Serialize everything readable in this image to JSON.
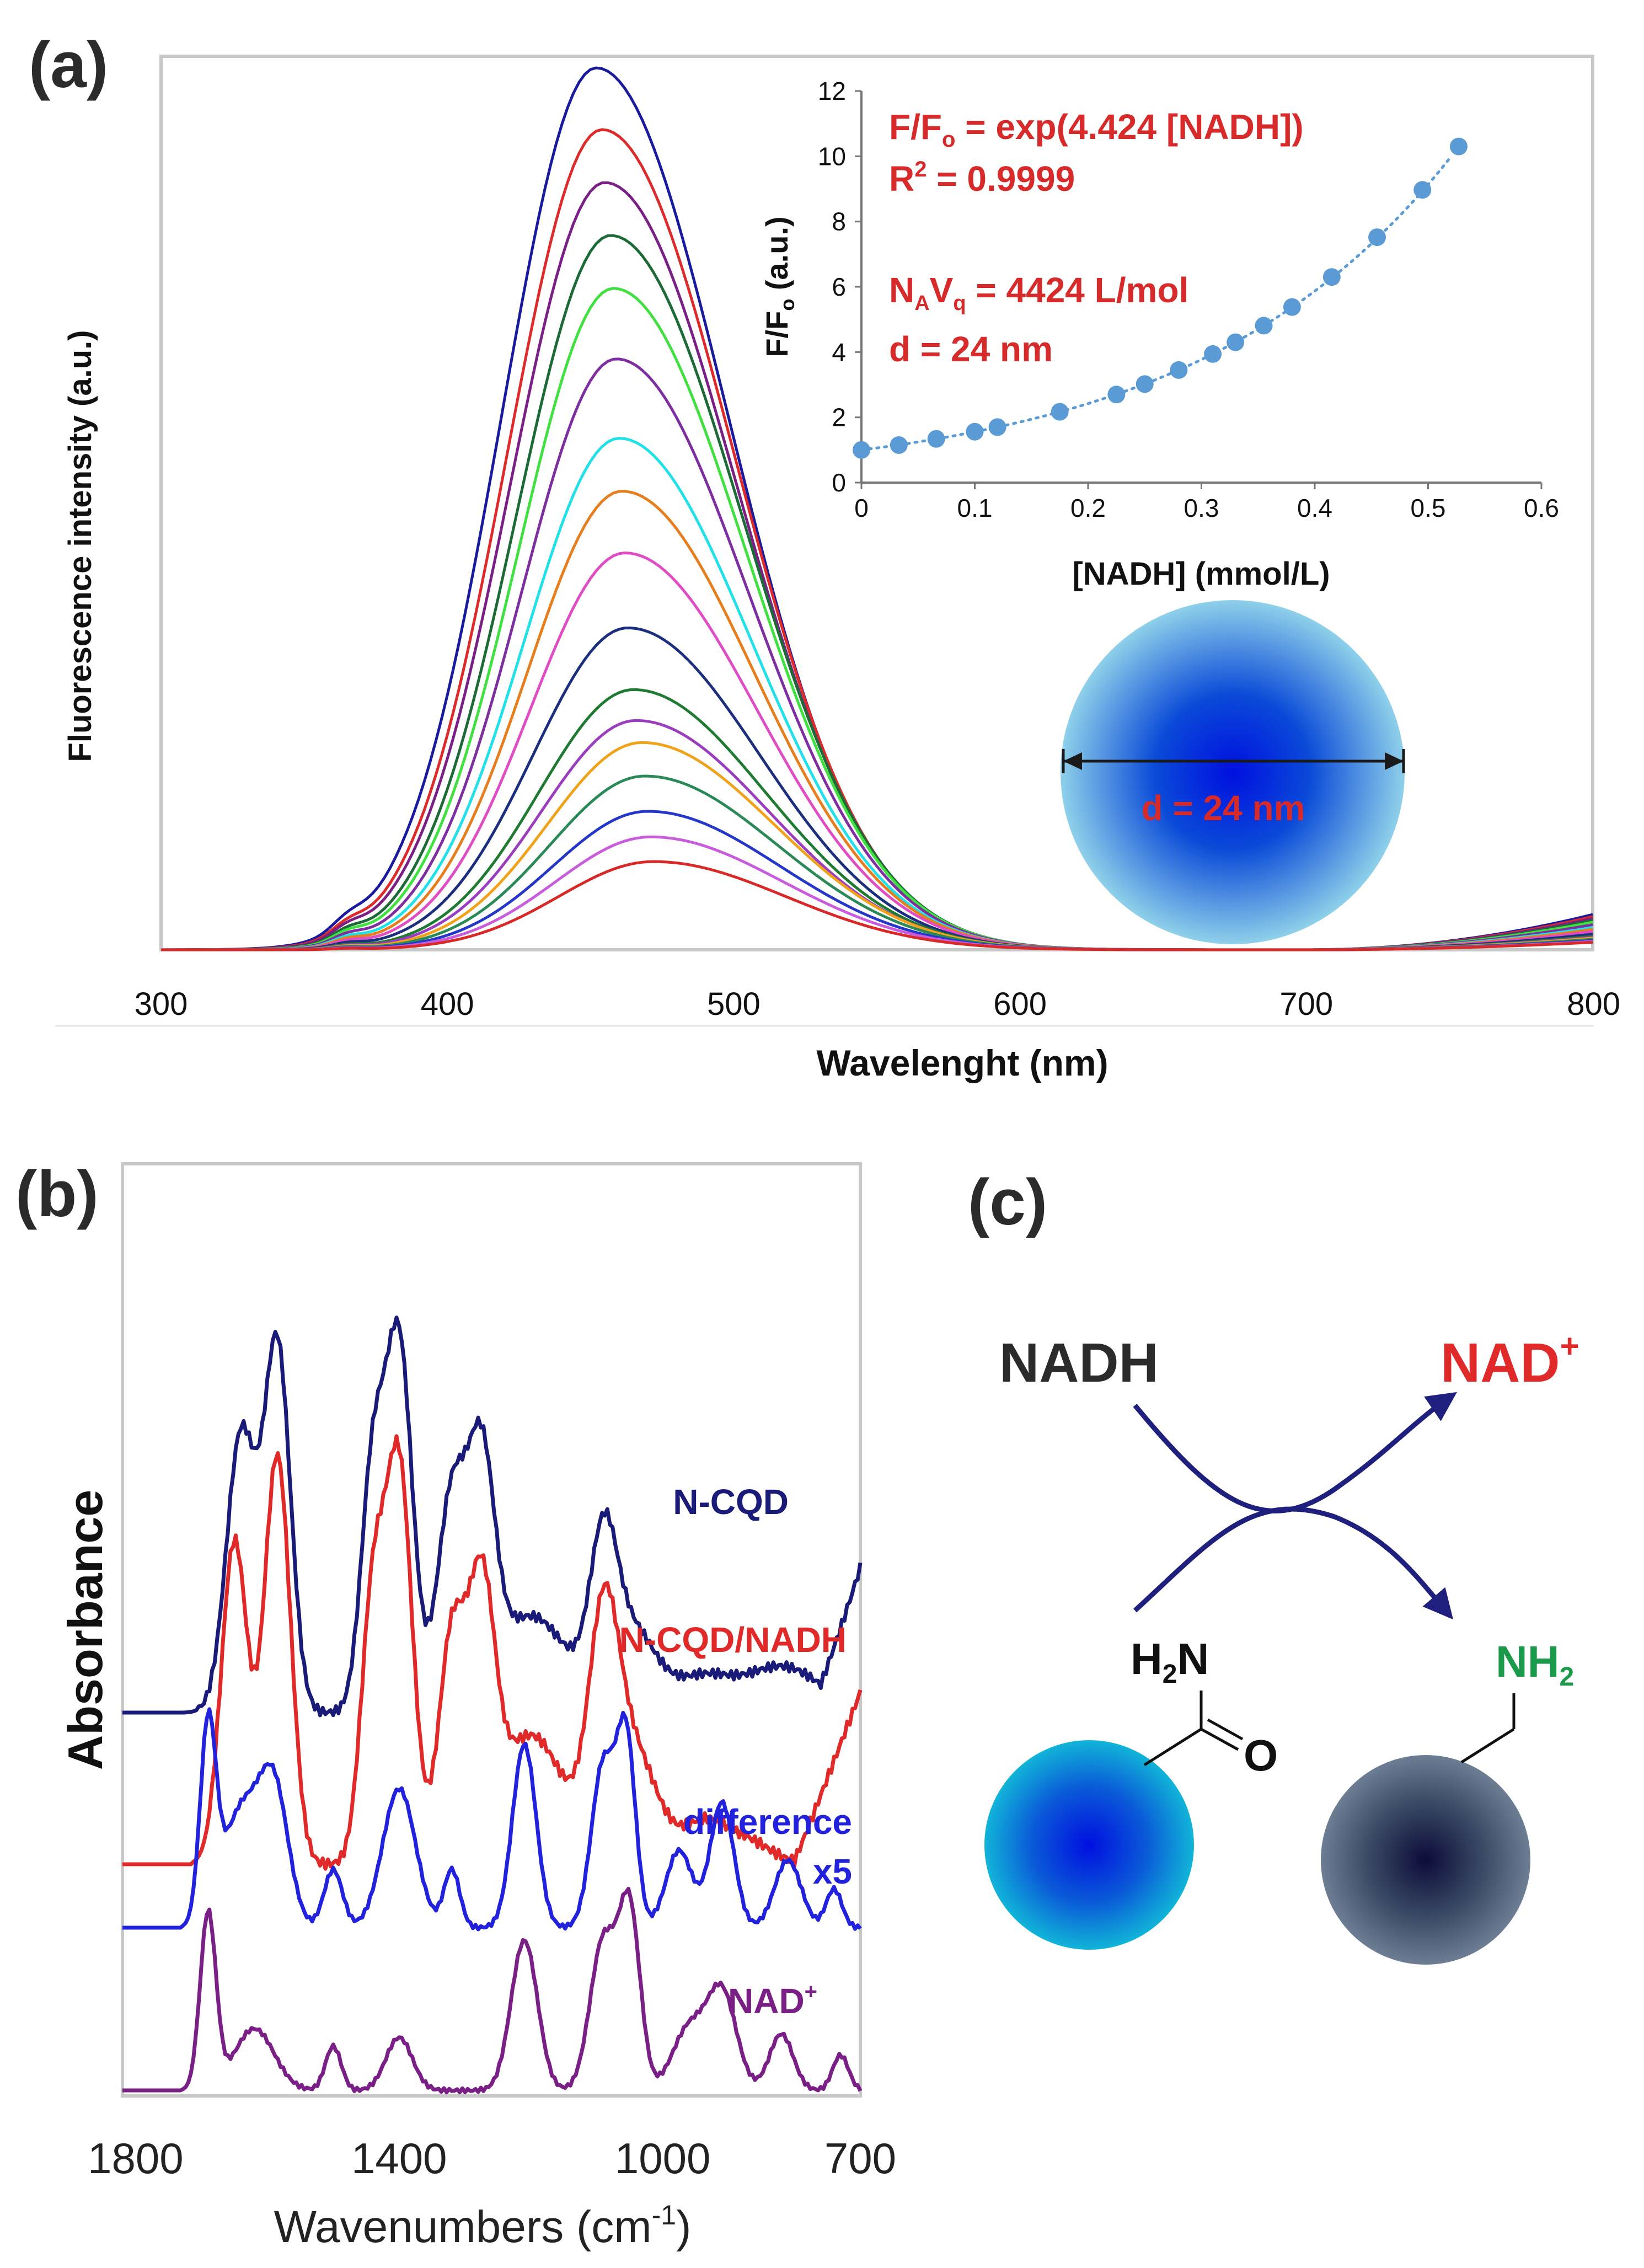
{
  "figure": {
    "panels": {
      "a": "(a)",
      "b": "(b)",
      "c": "(c)"
    }
  },
  "chart_data": [
    {
      "id": "panel-a",
      "type": "line",
      "xlabel": "Wavelenght (nm)",
      "ylabel": "Fluorescence intensity (a.u.)",
      "xlim": [
        300,
        800
      ],
      "xticks": [
        300,
        400,
        500,
        600,
        700,
        800
      ],
      "series_colors": [
        "#1a1a9e",
        "#dd2a2a",
        "#7a1f86",
        "#1c6b36",
        "#3fe03f",
        "#7e2ea0",
        "#20e0e8",
        "#e67e1e",
        "#e04cc4",
        "#1c2f7e",
        "#1f7a32",
        "#9a3dbf",
        "#f0a21a",
        "#2a8a57",
        "#2437c8",
        "#c85cdc",
        "#d82828"
      ],
      "peak_intensities": [
        1.0,
        0.93,
        0.87,
        0.81,
        0.75,
        0.67,
        0.58,
        0.52,
        0.45,
        0.365,
        0.295,
        0.26,
        0.235,
        0.197,
        0.157,
        0.128,
        0.1
      ],
      "peak_wavelengths": [
        452,
        454,
        455,
        457,
        458,
        459,
        460,
        461,
        462,
        463,
        465,
        466,
        468,
        469,
        470,
        471,
        472
      ]
    },
    {
      "id": "panel-a-inset",
      "type": "scatter",
      "xlabel": "[NADH]  (mmol/L)",
      "ylabel": "F/Fo (a.u.)",
      "xlim": [
        0,
        0.6
      ],
      "ylim": [
        0,
        12
      ],
      "xticks": [
        "0",
        "0.1",
        "0.2",
        "0.3",
        "0.4",
        "0.5",
        "0.6"
      ],
      "yticks": [
        "0",
        "2",
        "4",
        "6",
        "8",
        "10",
        "12"
      ],
      "x": [
        0,
        0.033,
        0.066,
        0.1,
        0.12,
        0.175,
        0.225,
        0.25,
        0.28,
        0.31,
        0.33,
        0.355,
        0.38,
        0.415,
        0.455,
        0.495,
        0.527
      ],
      "y": [
        1.0,
        1.15,
        1.34,
        1.56,
        1.7,
        2.17,
        2.7,
        3.02,
        3.45,
        3.94,
        4.3,
        4.81,
        5.38,
        6.3,
        7.52,
        8.97,
        10.3
      ],
      "fit": "exp(4.424 x)",
      "annotations": {
        "eq_prefix": "F/F",
        "eq_sub": "o",
        "eq_suffix": " = exp(4.424 [NADH])",
        "r2_prefix": "R",
        "r2_sup": "2",
        "r2_suffix": " = 0.9999",
        "navq_n": "N",
        "navq_a": "A",
        "navq_v": "V",
        "navq_q": "q",
        "navq_suffix": " = 4424 L/mol",
        "d": "d = 24 nm"
      },
      "ylabel_main": "F/F",
      "ylabel_sub": "o",
      "ylabel_suffix": " (a.u.)"
    },
    {
      "id": "panel-b",
      "type": "line",
      "xlabel_prefix": "Wavenumbers (cm",
      "xlabel_sup": "-1",
      "xlabel_suffix": ")",
      "ylabel": "Absorbance",
      "xlim": [
        1820,
        700
      ],
      "xticks": [
        "1800",
        "1400",
        "1000",
        "700"
      ],
      "xtick_values": [
        1800,
        1400,
        1000,
        700
      ],
      "series": [
        {
          "name": "N-CQD",
          "color": "#1a1a78"
        },
        {
          "name": "N-CQD/NADH",
          "color": "#e02a2a"
        },
        {
          "name_line1": "difference",
          "name_line2": "x5",
          "color": "#2222dd"
        },
        {
          "name_prefix": "NAD",
          "name_sup": "+",
          "color": "#7a1f86"
        }
      ]
    }
  ],
  "panel_c": {
    "nadh": "NADH",
    "nad_text": "NAD",
    "nad_sup": "+",
    "h2n_h": "H",
    "h2n_2": "2",
    "h2n_n": "N",
    "o": "O",
    "nh2_nh": "NH",
    "nh2_2": "2",
    "colors": {
      "nadh": "#2b2b2b",
      "nad": "#e02a2a",
      "nh2": "#1a9a4a",
      "arrow": "#1f1f7e"
    }
  }
}
